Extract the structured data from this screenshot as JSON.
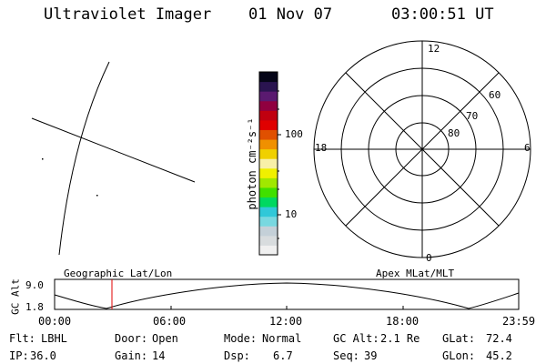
{
  "header": {
    "instrument": "Ultraviolet Imager",
    "date": "01 Nov 07",
    "time": "03:00:51 UT"
  },
  "colorbar": {
    "unit_label": "photon cm⁻²s⁻¹",
    "ticks": [
      "100",
      "10"
    ],
    "colors": [
      "#f0f0f0",
      "#d8dcde",
      "#c4d0d8",
      "#78d8e0",
      "#30c8d8",
      "#00d860",
      "#40e000",
      "#a0e800",
      "#f0f000",
      "#f8f0a8",
      "#f0d000",
      "#f09000",
      "#e05000",
      "#e00000",
      "#c00010",
      "#900040",
      "#5a1a70",
      "#2a1450",
      "#060618"
    ]
  },
  "polar_plot": {
    "hour_labels": [
      "12",
      "18",
      "6",
      "0"
    ],
    "lat_labels": [
      "60",
      "70",
      "80"
    ]
  },
  "altitude_panel": {
    "ylabel": "GC Alt",
    "ymax": "9.0",
    "ymin": "1.8",
    "left_title": "Geographic Lat/Lon",
    "right_title": "Apex MLat/MLT",
    "time_ticks": [
      "00:00",
      "06:00",
      "12:00",
      "18:00",
      "23:59"
    ],
    "current_time_marker_color": "#e00000"
  },
  "status": {
    "flt_label": "Flt:",
    "flt_value": "LBHL",
    "door_label": "Door:",
    "door_value": "Open",
    "mode_label": "Mode:",
    "mode_value": "Normal",
    "gcalt_label": "GC Alt:",
    "gcalt_value": "2.1 Re",
    "glat_label": "GLat:",
    "glat_value": "72.4",
    "ip_label": "IP:",
    "ip_value": "36.0",
    "gain_label": "Gain:",
    "gain_value": "14",
    "dsp_label": "Dsp:",
    "dsp_value": "6.7",
    "seq_label": "Seq:",
    "seq_value": "39",
    "glon_label": "GLon:",
    "glon_value": "45.2"
  }
}
